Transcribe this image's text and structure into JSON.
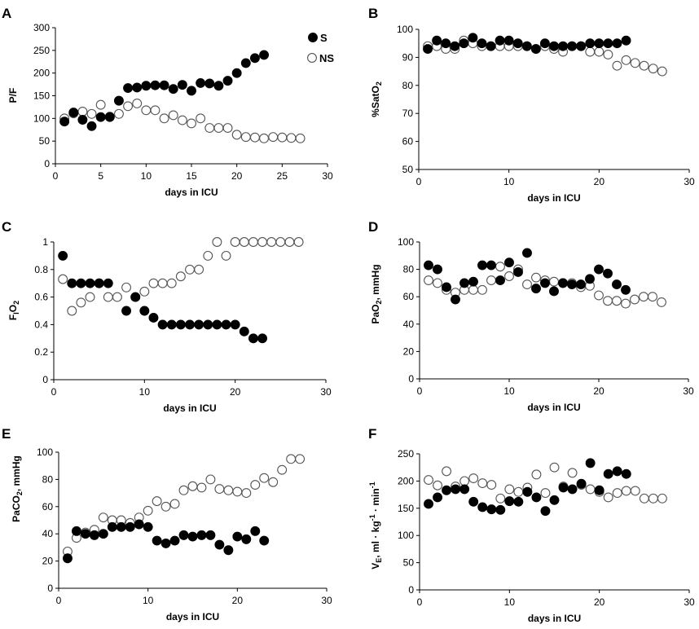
{
  "series_styles": {
    "S": {
      "fill": "#000000",
      "stroke": "#000000"
    },
    "NS": {
      "fill": "#ffffff",
      "stroke": "#555555"
    }
  },
  "legend": {
    "s_label": "S",
    "ns_label": "NS"
  },
  "chart_data": [
    {
      "panel": "A",
      "type": "scatter",
      "xlabel": "days in ICU",
      "ylabel": "P/F",
      "xlim": [
        0,
        30
      ],
      "ylim": [
        0,
        300
      ],
      "xticks": [
        0,
        5,
        10,
        15,
        20,
        25,
        30
      ],
      "yticks": [
        0,
        50,
        100,
        150,
        200,
        250,
        300
      ],
      "legend_position": "top-right",
      "series": [
        {
          "name": "S",
          "x": [
            1,
            2,
            3,
            4,
            5,
            6,
            7,
            8,
            9,
            10,
            11,
            12,
            13,
            14,
            15,
            16,
            17,
            18,
            19,
            20,
            21,
            22,
            23
          ],
          "y": [
            93,
            113,
            97,
            83,
            103,
            103,
            139,
            167,
            168,
            172,
            173,
            173,
            165,
            174,
            161,
            178,
            177,
            172,
            183,
            200,
            222,
            233,
            240
          ]
        },
        {
          "name": "NS",
          "x": [
            1,
            2,
            3,
            4,
            5,
            6,
            7,
            8,
            9,
            10,
            11,
            12,
            13,
            14,
            15,
            16,
            17,
            18,
            19,
            20,
            21,
            22,
            23,
            24,
            25,
            26,
            27
          ],
          "y": [
            100,
            111,
            115,
            110,
            130,
            104,
            110,
            127,
            133,
            118,
            118,
            100,
            107,
            96,
            89,
            100,
            79,
            79,
            79,
            64,
            59,
            58,
            56,
            59,
            58,
            57,
            56
          ]
        }
      ]
    },
    {
      "panel": "B",
      "type": "scatter",
      "xlabel": "days in ICU",
      "ylabel": "%SatO2",
      "ylabel_parts": {
        "prefix": "%SatO",
        "sub": "2"
      },
      "xlim": [
        0,
        30
      ],
      "ylim": [
        50,
        100
      ],
      "xticks": [
        0,
        10,
        20,
        30
      ],
      "yticks": [
        50,
        60,
        70,
        80,
        90,
        100
      ],
      "series": [
        {
          "name": "S",
          "x": [
            1,
            2,
            3,
            4,
            5,
            6,
            7,
            8,
            9,
            10,
            11,
            12,
            13,
            14,
            15,
            16,
            17,
            18,
            19,
            20,
            21,
            22,
            23
          ],
          "y": [
            93,
            96,
            95,
            94,
            95,
            97,
            95,
            94,
            96,
            96,
            95,
            94,
            93,
            95,
            94,
            94,
            94,
            94,
            95,
            95,
            95,
            95,
            96
          ]
        },
        {
          "name": "NS",
          "x": [
            1,
            2,
            3,
            4,
            5,
            6,
            7,
            8,
            9,
            10,
            11,
            12,
            13,
            14,
            15,
            16,
            17,
            18,
            19,
            20,
            21,
            22,
            23,
            24,
            25,
            26,
            27
          ],
          "y": [
            94,
            94,
            93,
            93,
            96,
            95,
            94,
            94,
            94,
            94,
            94,
            94,
            93,
            94,
            93,
            92,
            94,
            94,
            92,
            92,
            91,
            87,
            89,
            88,
            87,
            86,
            85
          ]
        }
      ]
    },
    {
      "panel": "C",
      "type": "scatter",
      "xlabel": "days in ICU",
      "ylabel": "FiO2",
      "ylabel_parts": {
        "prefix": "F",
        "sub": "I",
        "suffix": "O",
        "sub2": "2"
      },
      "xlim": [
        0,
        30
      ],
      "ylim": [
        0,
        1
      ],
      "xticks": [
        0,
        10,
        20,
        30
      ],
      "yticks": [
        0,
        0.2,
        0.4,
        0.6,
        0.8,
        1
      ],
      "ytick_labels": [
        "0",
        "0.2",
        "0.4",
        "0.6",
        "0.8",
        "1"
      ],
      "series": [
        {
          "name": "S",
          "x": [
            1,
            2,
            3,
            4,
            5,
            6,
            8,
            9,
            10,
            11,
            12,
            13,
            14,
            15,
            16,
            17,
            18,
            19,
            20,
            21,
            22,
            23
          ],
          "y": [
            0.9,
            0.7,
            0.7,
            0.7,
            0.7,
            0.7,
            0.5,
            0.6,
            0.5,
            0.45,
            0.4,
            0.4,
            0.4,
            0.4,
            0.4,
            0.4,
            0.4,
            0.4,
            0.4,
            0.35,
            0.3,
            0.3
          ]
        },
        {
          "name": "NS",
          "x": [
            1,
            2,
            3,
            4,
            5,
            6,
            7,
            8,
            9,
            10,
            11,
            12,
            13,
            14,
            15,
            16,
            17,
            18,
            19,
            20,
            21,
            22,
            23,
            24,
            25,
            26,
            27
          ],
          "y": [
            0.73,
            0.5,
            0.56,
            0.6,
            0.7,
            0.6,
            0.6,
            0.67,
            0.6,
            0.64,
            0.7,
            0.7,
            0.7,
            0.75,
            0.8,
            0.8,
            0.9,
            1,
            0.9,
            1,
            1,
            1,
            1,
            1,
            1,
            1,
            1
          ]
        }
      ]
    },
    {
      "panel": "D",
      "type": "scatter",
      "xlabel": "days in ICU",
      "ylabel": "PaO2, mmHg",
      "ylabel_parts": {
        "prefix": "PaO",
        "sub": "2",
        "suffix": ", mmHg"
      },
      "xlim": [
        0,
        30
      ],
      "ylim": [
        0,
        100
      ],
      "xticks": [
        0,
        10,
        20,
        30
      ],
      "yticks": [
        0,
        20,
        40,
        60,
        80,
        100
      ],
      "series": [
        {
          "name": "S",
          "x": [
            1,
            2,
            3,
            4,
            5,
            6,
            7,
            8,
            9,
            10,
            11,
            12,
            13,
            14,
            15,
            16,
            17,
            18,
            19,
            20,
            21,
            22,
            23
          ],
          "y": [
            83,
            80,
            67,
            58,
            70,
            71,
            83,
            83,
            72,
            85,
            78,
            92,
            66,
            70,
            64,
            70,
            69,
            69,
            73,
            80,
            77,
            69,
            65
          ]
        },
        {
          "name": "NS",
          "x": [
            1,
            2,
            3,
            4,
            5,
            6,
            7,
            8,
            9,
            10,
            11,
            12,
            13,
            14,
            15,
            16,
            17,
            18,
            19,
            20,
            21,
            22,
            23,
            24,
            25,
            26,
            27
          ],
          "y": [
            72,
            70,
            65,
            63,
            65,
            65,
            65,
            72,
            82,
            75,
            80,
            69,
            74,
            72,
            71,
            70,
            70,
            67,
            68,
            61,
            57,
            57,
            55,
            58,
            60,
            60,
            56
          ]
        }
      ]
    },
    {
      "panel": "E",
      "type": "scatter",
      "xlabel": "days in ICU",
      "ylabel": "PaCO2, mmHg",
      "ylabel_parts": {
        "prefix": "PaCO",
        "sub": "2",
        "suffix": ", mmHg"
      },
      "xlim": [
        0,
        30
      ],
      "ylim": [
        0,
        100
      ],
      "xticks": [
        0,
        10,
        20,
        30
      ],
      "yticks": [
        0,
        20,
        40,
        60,
        80,
        100
      ],
      "series": [
        {
          "name": "S",
          "x": [
            1,
            2,
            3,
            4,
            5,
            6,
            7,
            8,
            9,
            10,
            11,
            12,
            13,
            14,
            15,
            16,
            17,
            18,
            19,
            20,
            21,
            22,
            23
          ],
          "y": [
            22,
            42,
            40,
            39,
            40,
            45,
            45,
            45,
            47,
            45,
            35,
            33,
            35,
            39,
            38,
            39,
            39,
            32,
            28,
            38,
            36,
            42,
            35
          ]
        },
        {
          "name": "NS",
          "x": [
            1,
            2,
            3,
            4,
            5,
            6,
            7,
            8,
            9,
            10,
            11,
            12,
            13,
            14,
            15,
            16,
            17,
            18,
            19,
            20,
            21,
            22,
            23,
            24,
            25,
            26,
            27
          ],
          "y": [
            27,
            37,
            41,
            43,
            52,
            50,
            50,
            48,
            52,
            57,
            64,
            60,
            62,
            72,
            75,
            74,
            80,
            73,
            72,
            71,
            70,
            76,
            81,
            78,
            87,
            95,
            95
          ]
        }
      ]
    },
    {
      "panel": "F",
      "type": "scatter",
      "xlabel": "days in ICU",
      "ylabel": "VE, ml · kg-1 · min-1",
      "ylabel_parts": {
        "p1": "V",
        "sub": "E",
        "p2": ", ml · kg",
        "sup1": "-1",
        "p3": " · min",
        "sup2": "-1"
      },
      "xlim": [
        0,
        30
      ],
      "ylim": [
        0,
        250
      ],
      "xticks": [
        0,
        10,
        20,
        30
      ],
      "yticks": [
        0,
        50,
        100,
        150,
        200,
        250
      ],
      "series": [
        {
          "name": "S",
          "x": [
            1,
            2,
            3,
            4,
            5,
            6,
            7,
            8,
            9,
            10,
            11,
            12,
            13,
            14,
            15,
            16,
            17,
            18,
            19,
            20,
            21,
            22,
            23
          ],
          "y": [
            158,
            170,
            183,
            185,
            185,
            162,
            152,
            148,
            147,
            163,
            162,
            180,
            170,
            145,
            165,
            188,
            185,
            195,
            233,
            183,
            213,
            218,
            213
          ]
        },
        {
          "name": "NS",
          "x": [
            1,
            2,
            3,
            4,
            5,
            6,
            7,
            8,
            9,
            10,
            11,
            12,
            13,
            14,
            15,
            16,
            17,
            18,
            19,
            20,
            21,
            22,
            23,
            24,
            25,
            26,
            27
          ],
          "y": [
            202,
            192,
            218,
            190,
            200,
            205,
            196,
            193,
            168,
            185,
            180,
            188,
            212,
            178,
            225,
            190,
            215,
            193,
            185,
            180,
            170,
            178,
            182,
            182,
            168,
            168,
            168
          ]
        }
      ]
    }
  ]
}
